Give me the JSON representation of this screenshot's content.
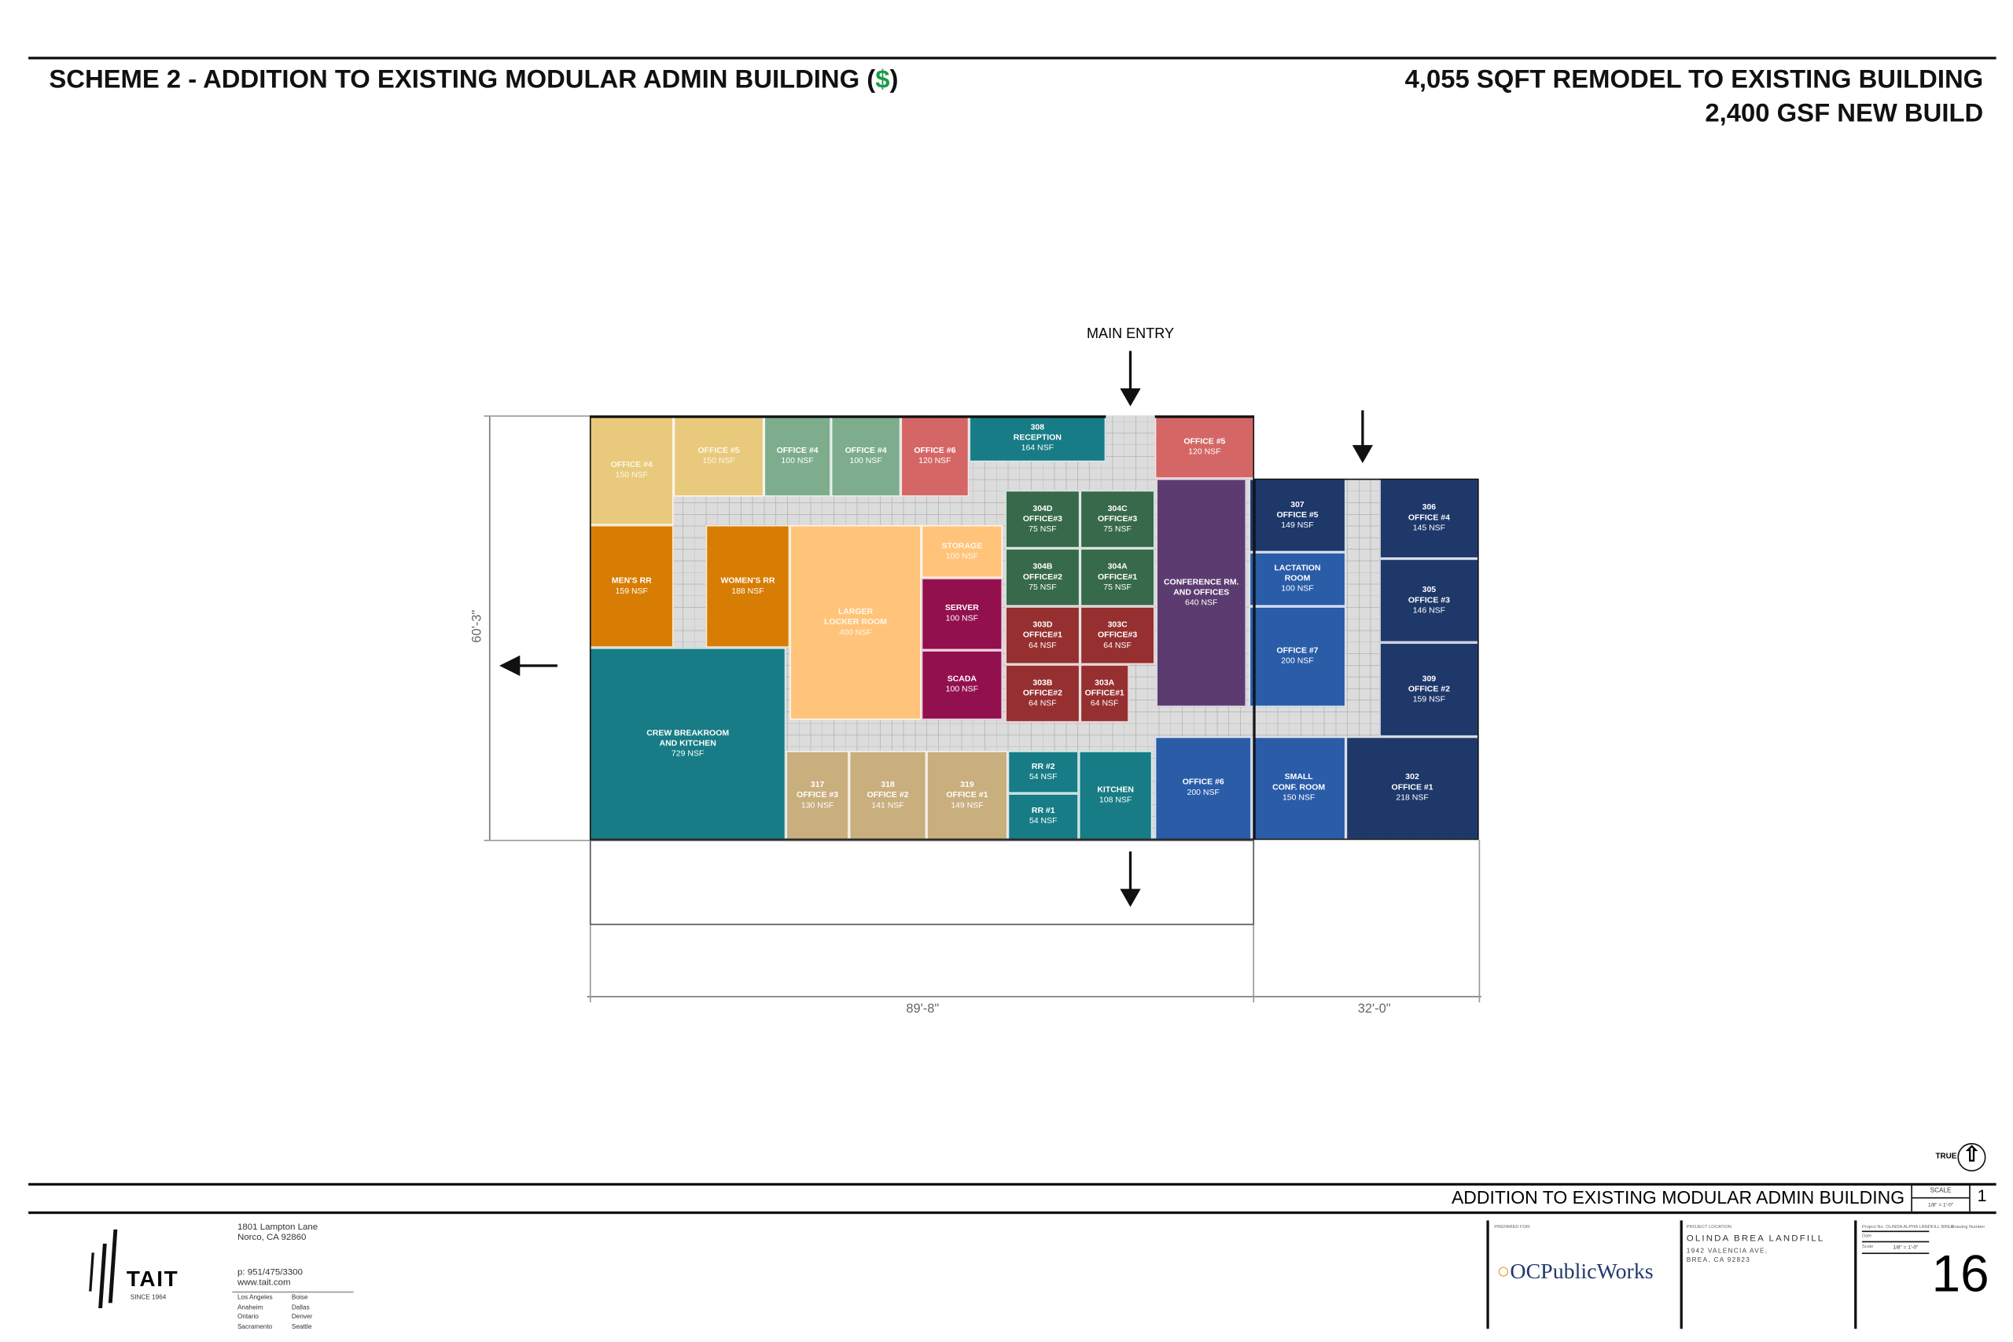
{
  "header": {
    "title_prefix": "SCHEME 2 - ADDITION TO EXISTING MODULAR ADMIN BUILDING (",
    "title_dollar": "$",
    "title_suffix": ")",
    "right_line1": "4,055 SQFT REMODEL TO EXISTING BUILDING",
    "right_line2": "2,400 GSF NEW BUILD"
  },
  "plan": {
    "main_entry": "MAIN ENTRY",
    "dim_height": "60'-3\"",
    "dim_width_existing": "89'-8\"",
    "dim_width_addition": "32'-0\""
  },
  "rooms": [
    {
      "id": "",
      "name": "OFFICE #4",
      "area": "150 NSF",
      "color": "#E9C97B"
    },
    {
      "id": "",
      "name": "OFFICE #5",
      "area": "150 NSF",
      "color": "#E9C97B"
    },
    {
      "id": "",
      "name": "OFFICE #4",
      "area": "100 NSF",
      "color": "#7DAD8D"
    },
    {
      "id": "",
      "name": "OFFICE #4",
      "area": "100 NSF",
      "color": "#7DAD8D"
    },
    {
      "id": "",
      "name": "OFFICE #6",
      "area": "120 NSF",
      "color": "#D46766"
    },
    {
      "id": "308",
      "name": "RECEPTION",
      "area": "164 NSF",
      "color": "#177C85"
    },
    {
      "id": "",
      "name": "OFFICE #5",
      "area": "120 NSF",
      "color": "#D46766"
    },
    {
      "id": "",
      "name": "MEN'S RR",
      "area": "159 NSF",
      "color": "#D77D04"
    },
    {
      "id": "",
      "name": "WOMEN'S RR",
      "area": "188 NSF",
      "color": "#D77D04"
    },
    {
      "id": "LARGER",
      "name": "LOCKER ROOM",
      "area": "400 NSF",
      "color": "#FFC47A"
    },
    {
      "id": "",
      "name": "STORAGE",
      "area": "100 NSF",
      "color": "#FFC47A"
    },
    {
      "id": "",
      "name": "SERVER",
      "area": "100 NSF",
      "color": "#92104E"
    },
    {
      "id": "",
      "name": "SCADA",
      "area": "100 NSF",
      "color": "#92104E"
    },
    {
      "id": "CREW BREAKROOM",
      "name": "AND KITCHEN",
      "area": "729 NSF",
      "color": "#177C85"
    },
    {
      "id": "304D",
      "name": "OFFICE#3",
      "area": "75 NSF",
      "color": "#376A4B"
    },
    {
      "id": "304C",
      "name": "OFFICE#3",
      "area": "75 NSF",
      "color": "#376A4B"
    },
    {
      "id": "304B",
      "name": "OFFICE#2",
      "area": "75 NSF",
      "color": "#376A4B"
    },
    {
      "id": "304A",
      "name": "OFFICE#1",
      "area": "75 NSF",
      "color": "#376A4B"
    },
    {
      "id": "303D",
      "name": "OFFICE#1",
      "area": "64 NSF",
      "color": "#962F30"
    },
    {
      "id": "303C",
      "name": "OFFICE#3",
      "area": "64 NSF",
      "color": "#962F30"
    },
    {
      "id": "303B",
      "name": "OFFICE#2",
      "area": "64 NSF",
      "color": "#962F30"
    },
    {
      "id": "303A",
      "name": "OFFICE#1",
      "area": "64 NSF",
      "color": "#962F30"
    },
    {
      "id": "CONFERENCE RM.",
      "name": "AND OFFICES",
      "area": "640 NSF",
      "color": "#5C3C70"
    },
    {
      "id": "307",
      "name": "OFFICE #5",
      "area": "149 NSF",
      "color": "#1E386A"
    },
    {
      "id": "LACTATION",
      "name": "ROOM",
      "area": "100 NSF",
      "color": "#2A5CA8"
    },
    {
      "id": "",
      "name": "OFFICE #7",
      "area": "200 NSF",
      "color": "#2A5CA8"
    },
    {
      "id": "306",
      "name": "OFFICE #4",
      "area": "145 NSF",
      "color": "#1E386A"
    },
    {
      "id": "305",
      "name": "OFFICE #3",
      "area": "146 NSF",
      "color": "#1E386A"
    },
    {
      "id": "309",
      "name": "OFFICE #2",
      "area": "159 NSF",
      "color": "#1E386A"
    },
    {
      "id": "",
      "name": "OFFICE #6",
      "area": "200 NSF",
      "color": "#2A5CA8"
    },
    {
      "id": "SMALL",
      "name": "CONF. ROOM",
      "area": "150 NSF",
      "color": "#2A5CA8"
    },
    {
      "id": "302",
      "name": "OFFICE #1",
      "area": "218 NSF",
      "color": "#1E386A"
    },
    {
      "id": "317",
      "name": "OFFICE #3",
      "area": "130 NSF",
      "color": "#C9AE7E"
    },
    {
      "id": "318",
      "name": "OFFICE #2",
      "area": "141 NSF",
      "color": "#C9AE7E"
    },
    {
      "id": "319",
      "name": "OFFICE #1",
      "area": "149 NSF",
      "color": "#C9AE7E"
    },
    {
      "id": "",
      "name": "RR #2",
      "area": "54 NSF",
      "color": "#177C85"
    },
    {
      "id": "",
      "name": "RR #1",
      "area": "54 NSF",
      "color": "#177C85"
    },
    {
      "id": "",
      "name": "KITCHEN",
      "area": "108 NSF",
      "color": "#177C85"
    }
  ],
  "titleblock": {
    "north_label": "TRUE",
    "sheet_title": "ADDITION TO EXISTING MODULAR ADMIN BUILDING",
    "scale_label": "SCALE",
    "scale_value": "1/8\" = 1'-0\"",
    "detail_number": "1",
    "prepared_for_label": "PREPARED FOR:",
    "client_logo": "OCPublicWorks",
    "project_location_label": "PROJECT LOCATION",
    "project_name": "OLINDA BREA LANDFILL",
    "address1": "1942 VALENCIA AVE,",
    "address2": "BREA, CA 92823",
    "project_no_label": "Project No.",
    "project_no": "OLINDA ALPHA LANDFILL BREA",
    "drawing_number_label": "Drawing Number",
    "date_label": "Date",
    "scale_small_label": "Scale",
    "scale_small_value": "1/8\" = 1'-0\"",
    "drawing_number": "16"
  },
  "firm": {
    "logo": "TAIT",
    "since": "SINCE 1964",
    "address1": "1801 Lampton Lane",
    "address2": "Norco, CA 92860",
    "phone": "p: 951/475/3300",
    "web": "www.tait.com",
    "offices_col1": [
      "Los Angeles",
      "Anaheim",
      "Ontario",
      "Sacramento"
    ],
    "offices_col2": [
      "Boise",
      "Dallas",
      "Denver",
      "Seattle"
    ]
  }
}
